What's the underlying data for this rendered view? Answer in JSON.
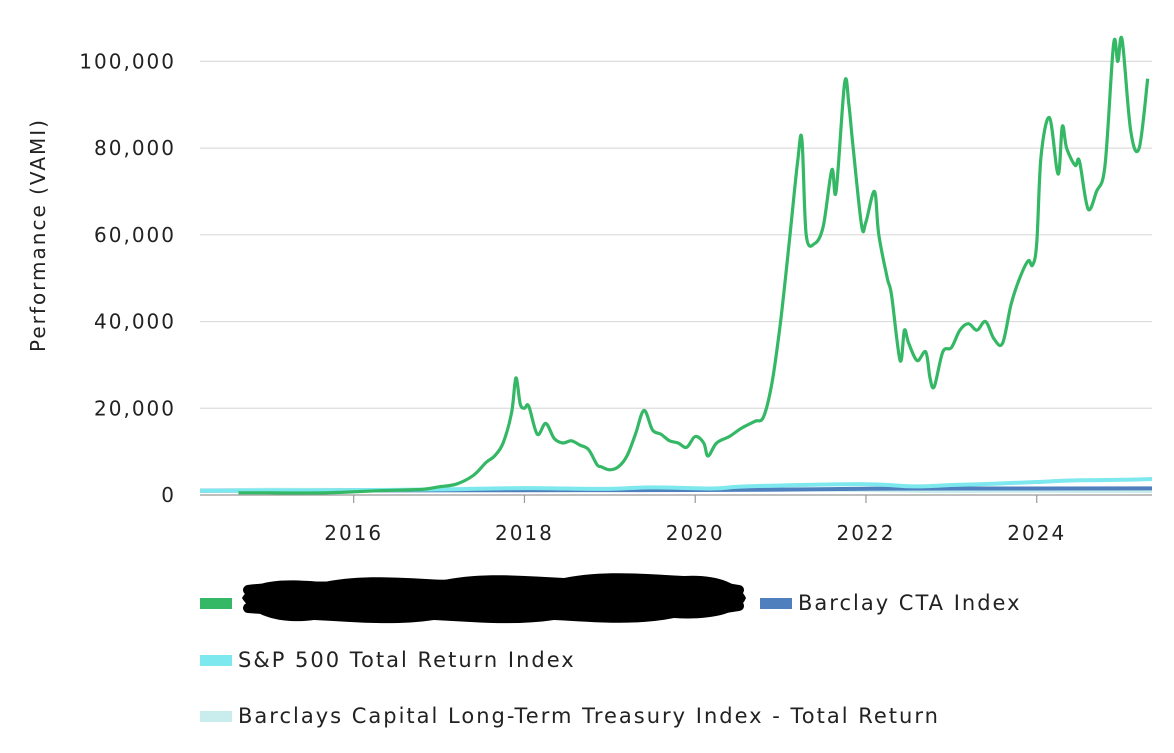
{
  "chart_data": {
    "type": "line",
    "title": "",
    "xlabel": "",
    "ylabel": "Performance (VAMI)",
    "xlim": [
      2014.2,
      2025.35
    ],
    "ylim": [
      0,
      110000
    ],
    "x_ticks": [
      2016,
      2018,
      2020,
      2022,
      2024
    ],
    "x_tick_labels": [
      "2016",
      "2018",
      "2020",
      "2022",
      "2024"
    ],
    "y_ticks": [
      0,
      20000,
      40000,
      60000,
      80000,
      100000
    ],
    "y_tick_labels": [
      "0",
      "20,000",
      "40,000",
      "60,000",
      "80,000",
      "100,000"
    ],
    "grid": true,
    "legend_placement": "bottom",
    "series": [
      {
        "name": "",
        "redacted": true,
        "color": "#35b865",
        "x": [
          2014.65,
          2015.0,
          2015.5,
          2015.85,
          2016.3,
          2016.8,
          2017.0,
          2017.2,
          2017.4,
          2017.55,
          2017.65,
          2017.75,
          2017.85,
          2017.9,
          2017.95,
          2018.0,
          2018.05,
          2018.15,
          2018.25,
          2018.35,
          2018.45,
          2018.55,
          2018.65,
          2018.75,
          2018.85,
          2018.9,
          2019.0,
          2019.1,
          2019.2,
          2019.3,
          2019.4,
          2019.5,
          2019.6,
          2019.7,
          2019.8,
          2019.9,
          2020.0,
          2020.1,
          2020.15,
          2020.25,
          2020.4,
          2020.55,
          2020.7,
          2020.8,
          2020.9,
          2021.0,
          2021.1,
          2021.2,
          2021.25,
          2021.3,
          2021.4,
          2021.5,
          2021.6,
          2021.65,
          2021.75,
          2021.8,
          2021.85,
          2021.95,
          2022.0,
          2022.1,
          2022.15,
          2022.25,
          2022.3,
          2022.4,
          2022.45,
          2022.5,
          2022.6,
          2022.7,
          2022.75,
          2022.8,
          2022.9,
          2023.0,
          2023.1,
          2023.2,
          2023.3,
          2023.4,
          2023.5,
          2023.6,
          2023.7,
          2023.8,
          2023.9,
          2023.95,
          2024.0,
          2024.05,
          2024.15,
          2024.25,
          2024.3,
          2024.35,
          2024.45,
          2024.5,
          2024.6,
          2024.7,
          2024.8,
          2024.9,
          2024.95,
          2025.0,
          2025.1,
          2025.2,
          2025.3
        ],
        "values": [
          500,
          500,
          450,
          600,
          1000,
          1300,
          1900,
          2500,
          4500,
          7500,
          9000,
          12000,
          19000,
          27000,
          21000,
          20000,
          20500,
          14000,
          16500,
          13000,
          12000,
          12500,
          11500,
          10500,
          7000,
          6500,
          5800,
          6500,
          9000,
          14000,
          19500,
          15000,
          14000,
          12500,
          12000,
          11000,
          13500,
          12000,
          9000,
          12000,
          13500,
          15500,
          17000,
          18000,
          26000,
          40000,
          58000,
          77000,
          82000,
          60000,
          58000,
          62000,
          75000,
          70000,
          95000,
          90000,
          80000,
          62000,
          63000,
          70000,
          60000,
          50000,
          46000,
          31000,
          38000,
          35000,
          31000,
          33000,
          27000,
          25000,
          33000,
          34000,
          38000,
          39500,
          38000,
          40000,
          36000,
          35000,
          44000,
          50000,
          54000,
          53000,
          58000,
          78000,
          87000,
          74000,
          85000,
          80000,
          76000,
          77000,
          66000,
          70000,
          76000,
          104000,
          100000,
          105000,
          84000,
          80000,
          96000
        ]
      },
      {
        "name": "Barclay CTA Index",
        "color": "#4f7fbd",
        "x": [
          2014.2,
          2016.0,
          2018.0,
          2020.0,
          2021.0,
          2022.0,
          2024.0,
          2025.35
        ],
        "values": [
          1000,
          1050,
          1100,
          1150,
          1250,
          1450,
          1500,
          1520
        ]
      },
      {
        "name": "S&P 500 Total Return Index",
        "color": "#7de8ee",
        "x": [
          2014.2,
          2015.0,
          2016.0,
          2017.0,
          2018.0,
          2018.9,
          2019.5,
          2020.2,
          2020.5,
          2021.0,
          2022.0,
          2022.5,
          2022.8,
          2023.0,
          2023.5,
          2024.0,
          2024.5,
          2025.0,
          2025.35
        ],
        "values": [
          1000,
          1050,
          1100,
          1300,
          1600,
          1400,
          1750,
          1500,
          1900,
          2200,
          2500,
          2000,
          2100,
          2300,
          2600,
          3000,
          3400,
          3500,
          3700
        ]
      },
      {
        "name": "Barclays Capital Long-Term Treasury Index - Total Return",
        "color": "#c9ecec",
        "x": [
          2014.2,
          2015.0,
          2016.0,
          2017.0,
          2018.0,
          2019.0,
          2020.0,
          2020.5,
          2021.0,
          2022.0,
          2022.8,
          2023.5,
          2024.0,
          2025.35
        ],
        "values": [
          1000,
          1200,
          1150,
          1100,
          1150,
          1200,
          1400,
          1450,
          1350,
          1150,
          900,
          950,
          950,
          920
        ]
      }
    ]
  }
}
